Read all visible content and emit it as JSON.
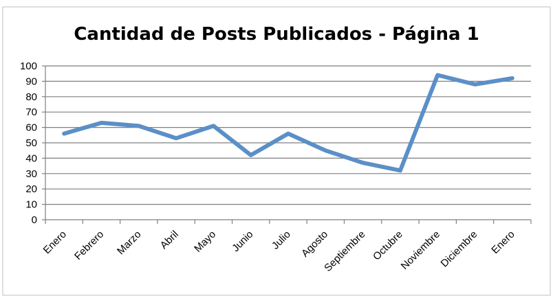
{
  "chart_data": {
    "type": "line",
    "title": "Cantidad de Posts Publicados - Página 1",
    "xlabel": "",
    "ylabel": "",
    "categories": [
      "Enero",
      "Febrero",
      "Marzo",
      "Abril",
      "Mayo",
      "Junio",
      "Julio",
      "Agosto",
      "Septiembre",
      "Octubre",
      "Noviembre",
      "Diciembre",
      "Enero"
    ],
    "series": [
      {
        "values": [
          56,
          63,
          61,
          53,
          61,
          42,
          56,
          45,
          37,
          32,
          94,
          88,
          92
        ]
      }
    ],
    "ylim": [
      0,
      100
    ],
    "yticks": [
      0,
      10,
      20,
      30,
      40,
      50,
      60,
      70,
      80,
      90,
      100
    ],
    "grid": true,
    "legend": "none",
    "colors": {
      "line": "#5b8fc7",
      "grid": "#7f7f7f",
      "frame": "#7f7f7f"
    }
  }
}
